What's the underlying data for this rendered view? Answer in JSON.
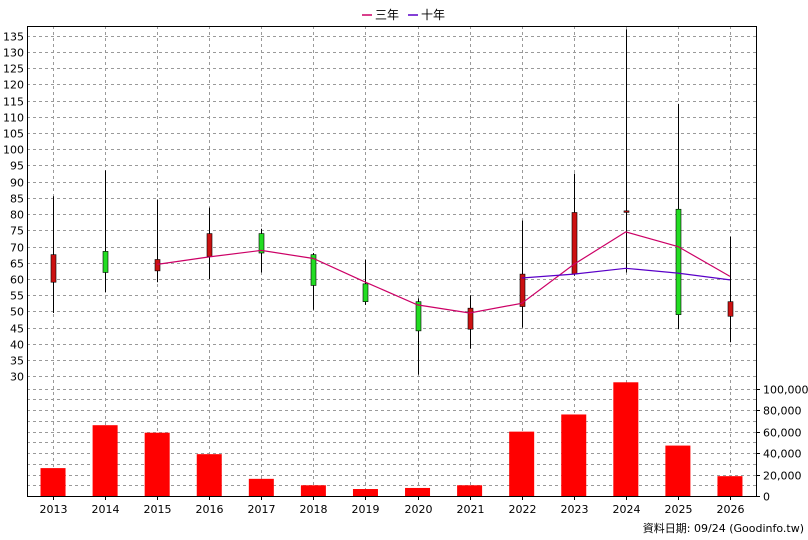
{
  "chart_data": {
    "type": "candlestick",
    "legend": [
      {
        "name": "三年",
        "color": "#cc0066"
      },
      {
        "name": "十年",
        "color": "#5a00c8"
      }
    ],
    "categories": [
      "2013",
      "2014",
      "2015",
      "2016",
      "2017",
      "2018",
      "2019",
      "2020",
      "2021",
      "2022",
      "2023",
      "2024",
      "2025",
      "2026"
    ],
    "price_axis": {
      "ylim": [
        27,
        138
      ],
      "ticks": [
        30,
        35,
        40,
        45,
        50,
        55,
        60,
        65,
        70,
        75,
        80,
        85,
        90,
        95,
        100,
        105,
        110,
        115,
        120,
        125,
        130,
        135
      ]
    },
    "candles": [
      {
        "year": "2013",
        "open": 67.5,
        "high": 85.5,
        "low": 49.5,
        "close": 59,
        "direction": "down"
      },
      {
        "year": "2014",
        "open": 62,
        "high": 93.5,
        "low": 56,
        "close": 68.5,
        "direction": "up"
      },
      {
        "year": "2015",
        "open": 66,
        "high": 84.5,
        "low": 59,
        "close": 62.5,
        "direction": "down"
      },
      {
        "year": "2016",
        "open": 74,
        "high": 82,
        "low": 60,
        "close": 67,
        "direction": "down"
      },
      {
        "year": "2017",
        "open": 68,
        "high": 75.5,
        "low": 62,
        "close": 74,
        "direction": "up"
      },
      {
        "year": "2018",
        "open": 58,
        "high": 68,
        "low": 50.5,
        "close": 67.5,
        "direction": "up"
      },
      {
        "year": "2019",
        "open": 53,
        "high": 66,
        "low": 52,
        "close": 58.5,
        "direction": "up"
      },
      {
        "year": "2020",
        "open": 44,
        "high": 54,
        "low": 30.5,
        "close": 53,
        "direction": "up"
      },
      {
        "year": "2021",
        "open": 51,
        "high": 55,
        "low": 38.5,
        "close": 44.5,
        "direction": "down"
      },
      {
        "year": "2022",
        "open": 61.5,
        "high": 78,
        "low": 45,
        "close": 51.5,
        "direction": "down"
      },
      {
        "year": "2023",
        "open": 80.5,
        "high": 92.5,
        "low": 61,
        "close": 61.5,
        "direction": "down"
      },
      {
        "year": "2024",
        "open": 81,
        "high": 137,
        "low": 62,
        "close": 81,
        "direction": "down"
      },
      {
        "year": "2025",
        "open": 49,
        "high": 114,
        "low": 44.5,
        "close": 81.5,
        "direction": "up"
      },
      {
        "year": "2026",
        "open": 53,
        "high": 73,
        "low": 40.5,
        "close": 48.5,
        "direction": "down"
      }
    ],
    "lines": [
      {
        "name": "三年",
        "color": "#cc0066",
        "points": [
          [
            "2015",
            64.5
          ],
          [
            "2016",
            66.8
          ],
          [
            "2017",
            68.8
          ],
          [
            "2018",
            66.3
          ],
          [
            "2019",
            59
          ],
          [
            "2020",
            52
          ],
          [
            "2021",
            49.5
          ],
          [
            "2022",
            52.5
          ],
          [
            "2023",
            64.5
          ],
          [
            "2024",
            74.5
          ],
          [
            "2025",
            70
          ],
          [
            "2026",
            60.8
          ]
        ]
      },
      {
        "name": "十年",
        "color": "#5a00c8",
        "points": [
          [
            "2022",
            60.3
          ],
          [
            "2023",
            61.5
          ],
          [
            "2024",
            63.3
          ],
          [
            "2025",
            61.8
          ],
          [
            "2026",
            59.7
          ]
        ]
      }
    ],
    "volume_axis": {
      "ylim": [
        0,
        110000
      ],
      "ticks": [
        0,
        20000,
        40000,
        60000,
        80000,
        100000
      ],
      "tick_labels": [
        "0",
        "20,000",
        "40,000",
        "60,000",
        "80,000",
        "100,000"
      ]
    },
    "volume": [
      26000,
      66000,
      59000,
      39000,
      16000,
      10000,
      6500,
      7500,
      10000,
      60000,
      76000,
      106000,
      47000,
      18500
    ],
    "footer": "資料日期: 09/24  (Goodinfo.tw)"
  }
}
